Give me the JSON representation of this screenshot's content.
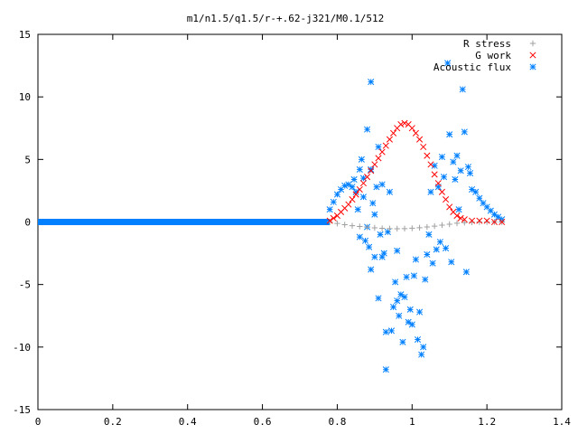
{
  "chart_data": {
    "type": "scatter",
    "title": "m1/n1.5/q1.5/r-+.62-j321/M0.1/512",
    "xlabel": "",
    "ylabel": "",
    "xlim": [
      0,
      1.4
    ],
    "ylim": [
      -15,
      15
    ],
    "xticks": [
      "0",
      "0.2",
      "0.4",
      "0.6",
      "0.8",
      "1",
      "1.2",
      "1.4"
    ],
    "yticks": [
      "15",
      "10",
      "5",
      "0",
      "-5",
      "-10",
      "-15"
    ],
    "grid": false,
    "legend_position": "top-right",
    "series": [
      {
        "name": "R stress",
        "color": "#a0a0a0",
        "marker": "plus",
        "points": [
          [
            0.78,
            0.0
          ],
          [
            0.8,
            -0.12
          ],
          [
            0.82,
            -0.22
          ],
          [
            0.84,
            -0.3
          ],
          [
            0.86,
            -0.36
          ],
          [
            0.88,
            -0.42
          ],
          [
            0.9,
            -0.47
          ],
          [
            0.92,
            -0.51
          ],
          [
            0.94,
            -0.53
          ],
          [
            0.96,
            -0.54
          ],
          [
            0.98,
            -0.53
          ],
          [
            1.0,
            -0.5
          ],
          [
            1.02,
            -0.46
          ],
          [
            1.04,
            -0.4
          ],
          [
            1.06,
            -0.33
          ],
          [
            1.08,
            -0.25
          ],
          [
            1.1,
            -0.18
          ],
          [
            1.12,
            -0.1
          ],
          [
            1.14,
            -0.05
          ],
          [
            1.16,
            -0.02
          ],
          [
            1.18,
            0.0
          ],
          [
            1.2,
            0.0
          ],
          [
            1.22,
            0.0
          ],
          [
            1.24,
            0.0
          ]
        ]
      },
      {
        "name": "G work",
        "color": "#ff0000",
        "marker": "cross",
        "points": [
          [
            0.78,
            0.1
          ],
          [
            0.79,
            0.3
          ],
          [
            0.8,
            0.5
          ],
          [
            0.81,
            0.8
          ],
          [
            0.82,
            1.1
          ],
          [
            0.83,
            1.4
          ],
          [
            0.84,
            1.8
          ],
          [
            0.85,
            2.2
          ],
          [
            0.86,
            2.6
          ],
          [
            0.87,
            3.1
          ],
          [
            0.88,
            3.6
          ],
          [
            0.89,
            4.1
          ],
          [
            0.9,
            4.6
          ],
          [
            0.91,
            5.1
          ],
          [
            0.92,
            5.6
          ],
          [
            0.93,
            6.1
          ],
          [
            0.94,
            6.6
          ],
          [
            0.95,
            7.1
          ],
          [
            0.96,
            7.5
          ],
          [
            0.97,
            7.8
          ],
          [
            0.98,
            7.9
          ],
          [
            0.99,
            7.8
          ],
          [
            1.0,
            7.5
          ],
          [
            1.01,
            7.1
          ],
          [
            1.02,
            6.6
          ],
          [
            1.03,
            6.0
          ],
          [
            1.04,
            5.3
          ],
          [
            1.05,
            4.6
          ],
          [
            1.06,
            3.8
          ],
          [
            1.07,
            3.1
          ],
          [
            1.08,
            2.4
          ],
          [
            1.09,
            1.8
          ],
          [
            1.1,
            1.2
          ],
          [
            1.11,
            0.8
          ],
          [
            1.12,
            0.5
          ],
          [
            1.13,
            0.3
          ],
          [
            1.14,
            0.2
          ],
          [
            1.16,
            0.1
          ],
          [
            1.18,
            0.1
          ],
          [
            1.2,
            0.1
          ],
          [
            1.22,
            0.0
          ],
          [
            1.24,
            0.0
          ]
        ]
      },
      {
        "name": "Acoustic flux",
        "color": "#0080ff",
        "marker": "star",
        "points": [
          [
            0.78,
            1.0
          ],
          [
            0.79,
            1.6
          ],
          [
            0.8,
            2.2
          ],
          [
            0.81,
            2.6
          ],
          [
            0.82,
            2.9
          ],
          [
            0.83,
            3.0
          ],
          [
            0.84,
            2.8
          ],
          [
            0.845,
            3.4
          ],
          [
            0.85,
            2.4
          ],
          [
            0.855,
            1.0
          ],
          [
            0.86,
            4.2
          ],
          [
            0.86,
            -1.2
          ],
          [
            0.865,
            5.0
          ],
          [
            0.87,
            2.0
          ],
          [
            0.87,
            3.5
          ],
          [
            0.875,
            -1.5
          ],
          [
            0.88,
            7.4
          ],
          [
            0.88,
            -0.4
          ],
          [
            0.885,
            -2.0
          ],
          [
            0.89,
            11.2
          ],
          [
            0.89,
            4.2
          ],
          [
            0.89,
            -3.8
          ],
          [
            0.895,
            1.5
          ],
          [
            0.9,
            -2.8
          ],
          [
            0.9,
            0.6
          ],
          [
            0.905,
            2.8
          ],
          [
            0.91,
            6.0
          ],
          [
            0.91,
            -6.1
          ],
          [
            0.915,
            -1.0
          ],
          [
            0.92,
            3.0
          ],
          [
            0.92,
            -2.8
          ],
          [
            0.925,
            -2.5
          ],
          [
            0.93,
            -11.8
          ],
          [
            0.93,
            -8.8
          ],
          [
            0.935,
            -0.8
          ],
          [
            0.94,
            2.4
          ],
          [
            0.945,
            -8.7
          ],
          [
            0.95,
            -6.8
          ],
          [
            0.955,
            -4.8
          ],
          [
            0.96,
            -6.3
          ],
          [
            0.96,
            -2.3
          ],
          [
            0.965,
            -7.5
          ],
          [
            0.97,
            -5.8
          ],
          [
            0.975,
            -9.6
          ],
          [
            0.98,
            -6.0
          ],
          [
            0.985,
            -4.4
          ],
          [
            0.99,
            -8.0
          ],
          [
            0.995,
            -7.0
          ],
          [
            1.0,
            -8.2
          ],
          [
            1.005,
            -4.3
          ],
          [
            1.01,
            -3.0
          ],
          [
            1.015,
            -9.4
          ],
          [
            1.02,
            -7.2
          ],
          [
            1.025,
            -10.6
          ],
          [
            1.03,
            -10.0
          ],
          [
            1.035,
            -4.6
          ],
          [
            1.04,
            -2.6
          ],
          [
            1.045,
            -1.0
          ],
          [
            1.05,
            2.4
          ],
          [
            1.055,
            -3.3
          ],
          [
            1.06,
            4.5
          ],
          [
            1.065,
            -2.2
          ],
          [
            1.07,
            2.8
          ],
          [
            1.075,
            -1.6
          ],
          [
            1.08,
            5.2
          ],
          [
            1.085,
            3.6
          ],
          [
            1.09,
            -2.1
          ],
          [
            1.095,
            12.7
          ],
          [
            1.1,
            7.0
          ],
          [
            1.105,
            -3.2
          ],
          [
            1.11,
            4.8
          ],
          [
            1.115,
            3.4
          ],
          [
            1.12,
            5.3
          ],
          [
            1.125,
            1.0
          ],
          [
            1.13,
            4.1
          ],
          [
            1.135,
            10.6
          ],
          [
            1.14,
            7.2
          ],
          [
            1.145,
            -4.0
          ],
          [
            1.15,
            4.4
          ],
          [
            1.155,
            3.9
          ],
          [
            1.16,
            2.6
          ],
          [
            1.17,
            2.4
          ],
          [
            1.18,
            1.9
          ],
          [
            1.19,
            1.5
          ],
          [
            1.2,
            1.2
          ],
          [
            1.21,
            0.9
          ],
          [
            1.22,
            0.6
          ],
          [
            1.23,
            0.4
          ],
          [
            1.24,
            0.2
          ]
        ],
        "baseline": {
          "from": 0.0,
          "to": 0.78,
          "y": 0
        }
      }
    ]
  }
}
